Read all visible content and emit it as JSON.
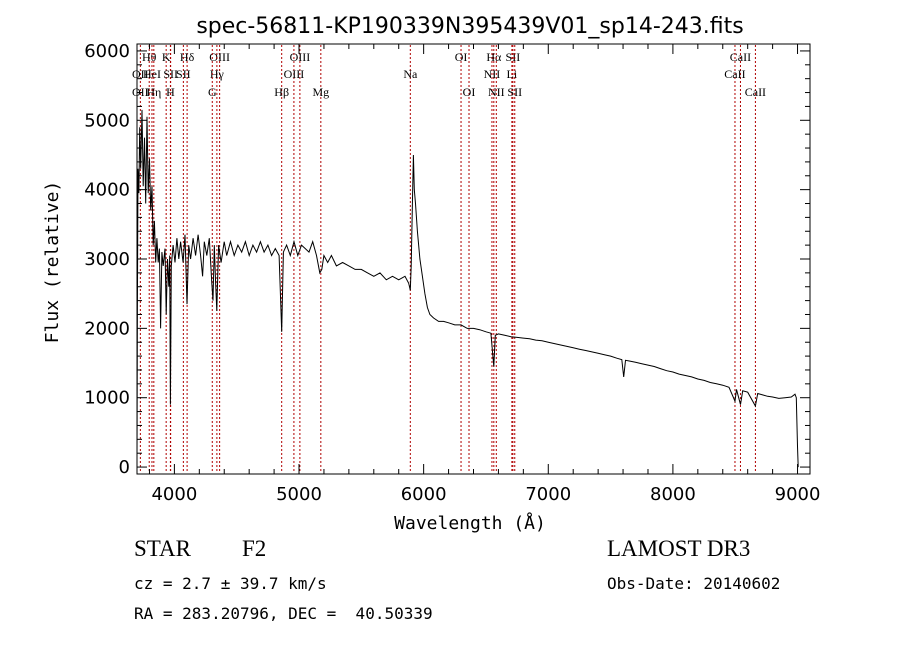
{
  "chart_data": {
    "type": "line",
    "title": "spec-56811-KP190339N395439V01_sp14-243.fits",
    "xlabel": "Wavelength (Å)",
    "ylabel": "Flux (relative)",
    "xlim": [
      3700,
      9100
    ],
    "ylim": [
      -100,
      6100
    ],
    "xticks": [
      4000,
      5000,
      6000,
      7000,
      8000,
      9000
    ],
    "xtick_labels": [
      "4000",
      "5000",
      "6000",
      "7000",
      "8000",
      "9000"
    ],
    "yticks": [
      0,
      1000,
      2000,
      3000,
      4000,
      5000,
      6000
    ],
    "ytick_labels": [
      "0",
      "1000",
      "2000",
      "3000",
      "4000",
      "5000",
      "6000"
    ],
    "grid": false,
    "spectrum_points": [
      [
        3700,
        100
      ],
      [
        3703,
        2300
      ],
      [
        3708,
        4300
      ],
      [
        3715,
        3950
      ],
      [
        3722,
        4900
      ],
      [
        3730,
        4300
      ],
      [
        3740,
        5150
      ],
      [
        3750,
        4050
      ],
      [
        3760,
        4750
      ],
      [
        3770,
        3800
      ],
      [
        3780,
        5050
      ],
      [
        3790,
        3950
      ],
      [
        3800,
        4450
      ],
      [
        3810,
        3700
      ],
      [
        3820,
        4050
      ],
      [
        3830,
        3200
      ],
      [
        3840,
        3550
      ],
      [
        3850,
        2950
      ],
      [
        3860,
        3300
      ],
      [
        3870,
        2950
      ],
      [
        3880,
        3150
      ],
      [
        3889,
        2000
      ],
      [
        3900,
        3100
      ],
      [
        3910,
        2900
      ],
      [
        3925,
        3150
      ],
      [
        3934,
        2200
      ],
      [
        3945,
        3000
      ],
      [
        3955,
        2600
      ],
      [
        3962,
        3050
      ],
      [
        3968,
        900
      ],
      [
        3975,
        2900
      ],
      [
        3990,
        3200
      ],
      [
        4005,
        2950
      ],
      [
        4020,
        3300
      ],
      [
        4035,
        3000
      ],
      [
        4050,
        3250
      ],
      [
        4070,
        2950
      ],
      [
        4085,
        3350
      ],
      [
        4101,
        2350
      ],
      [
        4115,
        3200
      ],
      [
        4130,
        3000
      ],
      [
        4150,
        3300
      ],
      [
        4170,
        3050
      ],
      [
        4190,
        3350
      ],
      [
        4210,
        3050
      ],
      [
        4226,
        2750
      ],
      [
        4240,
        3250
      ],
      [
        4260,
        3050
      ],
      [
        4280,
        3300
      ],
      [
        4300,
        2650
      ],
      [
        4310,
        2400
      ],
      [
        4320,
        3200
      ],
      [
        4330,
        2700
      ],
      [
        4340,
        2250
      ],
      [
        4355,
        3200
      ],
      [
        4375,
        2950
      ],
      [
        4400,
        3250
      ],
      [
        4420,
        3050
      ],
      [
        4450,
        3250
      ],
      [
        4480,
        3050
      ],
      [
        4510,
        3200
      ],
      [
        4540,
        3100
      ],
      [
        4570,
        3250
      ],
      [
        4600,
        3050
      ],
      [
        4630,
        3200
      ],
      [
        4660,
        3100
      ],
      [
        4690,
        3250
      ],
      [
        4720,
        3100
      ],
      [
        4750,
        3200
      ],
      [
        4780,
        3050
      ],
      [
        4810,
        3150
      ],
      [
        4840,
        3050
      ],
      [
        4861,
        1950
      ],
      [
        4875,
        3100
      ],
      [
        4900,
        3200
      ],
      [
        4930,
        3050
      ],
      [
        4960,
        3250
      ],
      [
        4990,
        3050
      ],
      [
        5020,
        3200
      ],
      [
        5050,
        3150
      ],
      [
        5080,
        3100
      ],
      [
        5110,
        3250
      ],
      [
        5140,
        3050
      ],
      [
        5167,
        2800
      ],
      [
        5183,
        2850
      ],
      [
        5200,
        3050
      ],
      [
        5230,
        2950
      ],
      [
        5260,
        3050
      ],
      [
        5300,
        2900
      ],
      [
        5350,
        2950
      ],
      [
        5400,
        2900
      ],
      [
        5450,
        2850
      ],
      [
        5500,
        2850
      ],
      [
        5550,
        2800
      ],
      [
        5600,
        2750
      ],
      [
        5650,
        2800
      ],
      [
        5700,
        2700
      ],
      [
        5750,
        2750
      ],
      [
        5800,
        2700
      ],
      [
        5850,
        2750
      ],
      [
        5880,
        2650
      ],
      [
        5893,
        2550
      ],
      [
        5900,
        2900
      ],
      [
        5910,
        3800
      ],
      [
        5918,
        4500
      ],
      [
        5925,
        4000
      ],
      [
        5935,
        3800
      ],
      [
        5950,
        3400
      ],
      [
        5970,
        3000
      ],
      [
        5990,
        2750
      ],
      [
        6010,
        2500
      ],
      [
        6030,
        2300
      ],
      [
        6050,
        2200
      ],
      [
        6080,
        2150
      ],
      [
        6120,
        2100
      ],
      [
        6160,
        2100
      ],
      [
        6200,
        2080
      ],
      [
        6250,
        2050
      ],
      [
        6300,
        2050
      ],
      [
        6350,
        2000
      ],
      [
        6400,
        2000
      ],
      [
        6450,
        1980
      ],
      [
        6500,
        1950
      ],
      [
        6540,
        1930
      ],
      [
        6563,
        1450
      ],
      [
        6575,
        1900
      ],
      [
        6600,
        1920
      ],
      [
        6650,
        1900
      ],
      [
        6700,
        1880
      ],
      [
        6750,
        1870
      ],
      [
        6800,
        1860
      ],
      [
        6850,
        1850
      ],
      [
        6900,
        1830
      ],
      [
        6950,
        1820
      ],
      [
        7000,
        1800
      ],
      [
        7050,
        1780
      ],
      [
        7100,
        1760
      ],
      [
        7150,
        1740
      ],
      [
        7200,
        1720
      ],
      [
        7250,
        1700
      ],
      [
        7300,
        1680
      ],
      [
        7350,
        1660
      ],
      [
        7400,
        1640
      ],
      [
        7450,
        1620
      ],
      [
        7500,
        1600
      ],
      [
        7550,
        1570
      ],
      [
        7590,
        1550
      ],
      [
        7605,
        1300
      ],
      [
        7620,
        1540
      ],
      [
        7650,
        1530
      ],
      [
        7700,
        1510
      ],
      [
        7750,
        1490
      ],
      [
        7800,
        1470
      ],
      [
        7850,
        1450
      ],
      [
        7900,
        1420
      ],
      [
        7950,
        1390
      ],
      [
        8000,
        1370
      ],
      [
        8050,
        1340
      ],
      [
        8100,
        1320
      ],
      [
        8150,
        1300
      ],
      [
        8200,
        1270
      ],
      [
        8250,
        1250
      ],
      [
        8300,
        1220
      ],
      [
        8350,
        1200
      ],
      [
        8400,
        1180
      ],
      [
        8450,
        1150
      ],
      [
        8498,
        950
      ],
      [
        8510,
        1120
      ],
      [
        8542,
        900
      ],
      [
        8560,
        1100
      ],
      [
        8600,
        1080
      ],
      [
        8662,
        880
      ],
      [
        8680,
        1060
      ],
      [
        8720,
        1040
      ],
      [
        8760,
        1020
      ],
      [
        8800,
        1010
      ],
      [
        8850,
        990
      ],
      [
        8900,
        1000
      ],
      [
        8950,
        1010
      ],
      [
        8980,
        1050
      ],
      [
        8990,
        1000
      ],
      [
        9000,
        300
      ],
      [
        9005,
        0
      ]
    ],
    "line_markers": [
      {
        "label": "OII",
        "wavelength": 3727,
        "row": 2
      },
      {
        "label": "OII",
        "wavelength": 3727,
        "row": 3
      },
      {
        "label": "Hθ",
        "wavelength": 3798,
        "row": 1
      },
      {
        "label": "HeI",
        "wavelength": 3820,
        "row": 2
      },
      {
        "label": "Hη",
        "wavelength": 3835,
        "row": 3
      },
      {
        "label": "K",
        "wavelength": 3934,
        "row": 1
      },
      {
        "label": "SII",
        "wavelength": 3970,
        "row": 2
      },
      {
        "label": "H",
        "wavelength": 3968,
        "row": 3
      },
      {
        "label": "Hδ",
        "wavelength": 4102,
        "row": 1
      },
      {
        "label": "SII",
        "wavelength": 4072,
        "row": 2
      },
      {
        "label": "OIII",
        "wavelength": 4363,
        "row": 1
      },
      {
        "label": "Hγ",
        "wavelength": 4341,
        "row": 2
      },
      {
        "label": "G",
        "wavelength": 4304,
        "row": 3
      },
      {
        "label": "OIII",
        "wavelength": 5007,
        "row": 1
      },
      {
        "label": "OIII",
        "wavelength": 4959,
        "row": 2
      },
      {
        "label": "Hβ",
        "wavelength": 4861,
        "row": 3
      },
      {
        "label": "Mg",
        "wavelength": 5175,
        "row": 3
      },
      {
        "label": "Na",
        "wavelength": 5893,
        "row": 2
      },
      {
        "label": "OI",
        "wavelength": 6300,
        "row": 1
      },
      {
        "label": "OI",
        "wavelength": 6364,
        "row": 3
      },
      {
        "label": "Hα",
        "wavelength": 6563,
        "row": 1
      },
      {
        "label": "SII",
        "wavelength": 6716,
        "row": 1
      },
      {
        "label": "NII",
        "wavelength": 6548,
        "row": 2
      },
      {
        "label": "Li",
        "wavelength": 6708,
        "row": 2
      },
      {
        "label": "NII",
        "wavelength": 6583,
        "row": 3
      },
      {
        "label": "SII",
        "wavelength": 6731,
        "row": 3
      },
      {
        "label": "CaII",
        "wavelength": 8542,
        "row": 1
      },
      {
        "label": "CaII",
        "wavelength": 8498,
        "row": 2
      },
      {
        "label": "CaII",
        "wavelength": 8662,
        "row": 3
      }
    ]
  },
  "info": {
    "object_class": "STAR",
    "object_subclass": "F2",
    "survey": "LAMOST DR3",
    "redshift": "cz = 2.7 ± 39.7 km/s",
    "obs_date": "Obs-Date: 20140602",
    "coords": "RA = 283.20796, DEC =  40.50339"
  }
}
